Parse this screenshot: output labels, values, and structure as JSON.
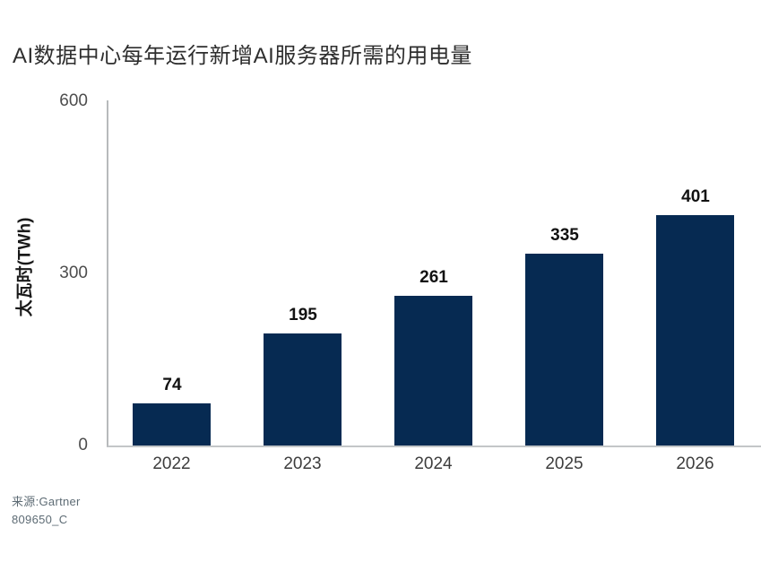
{
  "title": "AI数据中心每年运行新增AI服务器所需的用电量",
  "chart_data": {
    "type": "bar",
    "title": "AI数据中心每年运行新增AI服务器所需的用电量",
    "categories": [
      "2022",
      "2023",
      "2024",
      "2025",
      "2026"
    ],
    "values": [
      74,
      195,
      261,
      335,
      401
    ],
    "xlabel": "",
    "ylabel": "太瓦时(TWh)",
    "ylim": [
      0,
      600
    ],
    "yticks": [
      600,
      300,
      0
    ],
    "grid": false,
    "legend_position": "none",
    "data_labels": true,
    "bar_color": "#062a52",
    "axis_color": "#b7babc"
  },
  "footer": {
    "source": "来源:Gartner",
    "doc_id": "809650_C"
  }
}
